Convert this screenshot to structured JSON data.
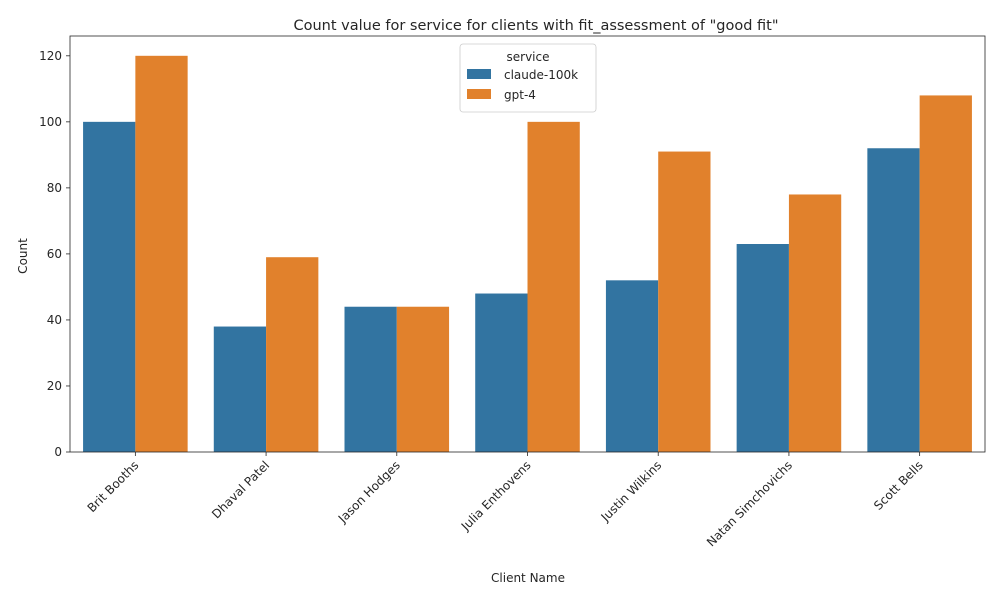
{
  "chart_data": {
    "type": "bar",
    "title": "Count value for service for clients with fit_assessment of \"good fit\"",
    "xlabel": "Client Name",
    "ylabel": "Count",
    "ylim": [
      0,
      126
    ],
    "yticks": [
      0,
      20,
      40,
      60,
      80,
      100,
      120
    ],
    "categories": [
      "Brit Booths",
      "Dhaval Patel",
      "Jason Hodges",
      "Julia Enthovens",
      "Justin Wilkins",
      "Natan Simchovichs",
      "Scott Bells"
    ],
    "series": [
      {
        "name": "claude-100k",
        "color": "#3274a1",
        "values": [
          100,
          38,
          44,
          48,
          52,
          63,
          92
        ]
      },
      {
        "name": "gpt-4",
        "color": "#e1812c",
        "values": [
          120,
          59,
          44,
          100,
          91,
          78,
          108
        ]
      }
    ],
    "legend": {
      "title": "service",
      "placement": "top-center"
    },
    "grid": false
  }
}
